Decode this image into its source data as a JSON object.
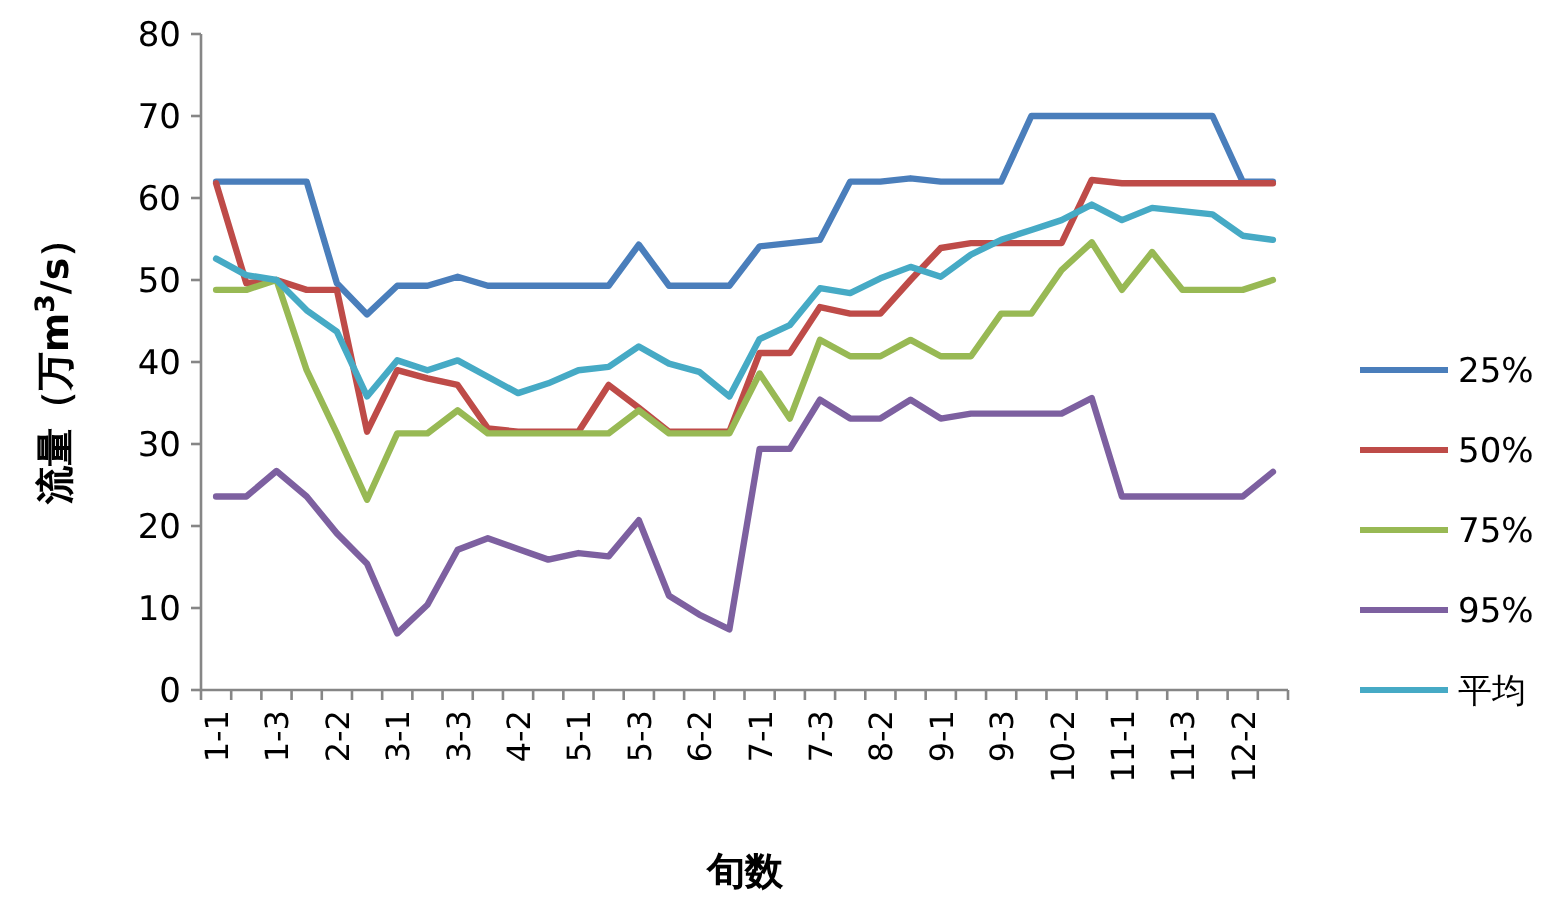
{
  "chart_data": {
    "type": "line",
    "xlabel": "旬数",
    "ylabel": "流量（万m$^{3}$/s）",
    "categories": [
      "1-1",
      null,
      "1-3",
      null,
      "2-2",
      null,
      "3-1",
      null,
      "3-3",
      null,
      "4-2",
      null,
      "5-1",
      null,
      "5-3",
      null,
      "6-2",
      null,
      "7-1",
      null,
      "7-3",
      null,
      "8-2",
      null,
      "9-1",
      null,
      "9-3",
      null,
      "10-2",
      null,
      "11-1",
      null,
      "11-3",
      null,
      "12-2",
      null
    ],
    "ylim": [
      0,
      80
    ],
    "yticks": [
      0,
      10,
      20,
      30,
      40,
      50,
      60,
      70,
      80
    ],
    "grid": false,
    "legend": "right",
    "marker": "none",
    "line_style": "solid",
    "series": [
      {
        "name": "25%",
        "color": "#4a7ebb",
        "values": [
          62,
          62,
          62,
          62,
          49.6,
          45.8,
          49.3,
          49.3,
          50.4,
          49.3,
          49.3,
          49.3,
          49.3,
          49.3,
          54.3,
          49.3,
          49.3,
          49.3,
          54.1,
          54.5,
          54.9,
          62,
          62,
          62.4,
          62,
          62,
          62,
          70,
          70,
          70,
          70,
          70,
          70,
          70,
          62,
          62
        ]
      },
      {
        "name": "50%",
        "color": "#be4b48",
        "values": [
          61.8,
          49.6,
          50,
          48.8,
          48.8,
          31.5,
          39,
          38,
          37.2,
          31.9,
          31.5,
          31.5,
          31.5,
          37.2,
          34.4,
          31.5,
          31.5,
          31.5,
          41.1,
          41.1,
          46.7,
          45.9,
          45.9,
          50,
          53.9,
          54.5,
          54.5,
          54.5,
          54.5,
          62.2,
          61.8,
          61.8,
          61.8,
          61.8,
          61.8,
          61.8
        ]
      },
      {
        "name": "75%",
        "color": "#98b954",
        "values": [
          48.8,
          48.8,
          50,
          39,
          31.3,
          23.2,
          31.3,
          31.3,
          34.1,
          31.3,
          31.3,
          31.3,
          31.3,
          31.3,
          34.1,
          31.3,
          31.3,
          31.3,
          38.6,
          33.1,
          42.7,
          40.7,
          40.7,
          42.7,
          40.7,
          40.7,
          45.9,
          45.9,
          51.2,
          54.6,
          48.8,
          53.4,
          48.8,
          48.8,
          48.8,
          50
        ]
      },
      {
        "name": "95%",
        "color": "#7d60a0",
        "values": [
          23.6,
          23.6,
          26.7,
          23.6,
          19.1,
          15.4,
          6.9,
          10.4,
          17.1,
          18.5,
          17.2,
          15.9,
          16.7,
          16.3,
          20.7,
          11.5,
          9.2,
          7.4,
          29.4,
          29.4,
          35.4,
          33.1,
          33.1,
          35.4,
          33.1,
          33.7,
          33.7,
          33.7,
          33.7,
          35.6,
          23.6,
          23.6,
          23.6,
          23.6,
          23.6,
          26.6
        ]
      },
      {
        "name": "平均",
        "color": "#46aac5",
        "values": [
          52.6,
          50.6,
          50,
          46.3,
          43.7,
          35.8,
          40.2,
          39,
          40.2,
          38.2,
          36.2,
          37.4,
          39,
          39.4,
          41.9,
          39.8,
          38.8,
          35.8,
          42.8,
          44.5,
          49,
          48.4,
          50.2,
          51.6,
          50.4,
          53.1,
          54.9,
          56.1,
          57.3,
          59.2,
          57.3,
          58.8,
          58.4,
          58,
          55.4,
          54.9
        ]
      }
    ]
  }
}
